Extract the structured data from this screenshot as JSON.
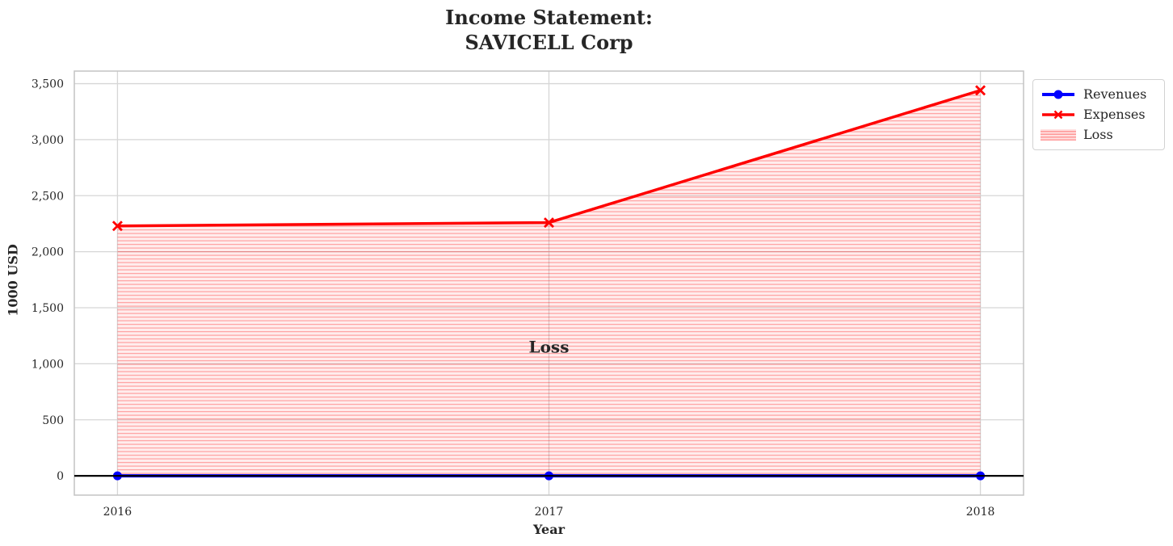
{
  "figure": {
    "background": "#ffffff"
  },
  "chart_data": {
    "type": "line",
    "title": "Income Statement:\nSAVICELL Corp",
    "xlabel": "Year",
    "ylabel": "1000 USD",
    "x": [
      2016,
      2017,
      2018
    ],
    "xtick_labels": [
      "2016",
      "2017",
      "2018"
    ],
    "yticks": [
      0,
      500,
      1000,
      1500,
      2000,
      2500,
      3000,
      3500
    ],
    "ytick_labels": [
      "0",
      "500",
      "1,000",
      "1,500",
      "2,000",
      "2,500",
      "3,000",
      "3,500"
    ],
    "xlim": [
      2015.9,
      2018.1
    ],
    "ylim": [
      -172,
      3612
    ],
    "grid": true,
    "series": [
      {
        "name": "Revenues",
        "color": "#0000ff",
        "marker": "circle",
        "line_width": 4,
        "values": [
          0,
          0,
          0
        ]
      },
      {
        "name": "Expenses",
        "color": "#ff0000",
        "marker": "x",
        "line_width": 3.5,
        "values": [
          2230,
          2260,
          3440
        ]
      }
    ],
    "loss_fill": {
      "label": "Loss",
      "between": [
        "Revenues",
        "Expenses"
      ],
      "color": "#ff0000",
      "hatch": "horizontal-lines"
    },
    "annotation": {
      "text": "Loss",
      "x": 2017,
      "y": 1150,
      "color": "#ff0000",
      "bold": true
    },
    "zero_line": {
      "y": 0,
      "color": "#000000"
    },
    "legend": {
      "position": "upper-right-outside",
      "entries": [
        "Revenues",
        "Expenses",
        "Loss"
      ]
    },
    "colors": {
      "grid": "#d6d6d6",
      "spine": "#c4c4c4",
      "text": "#262626"
    }
  }
}
